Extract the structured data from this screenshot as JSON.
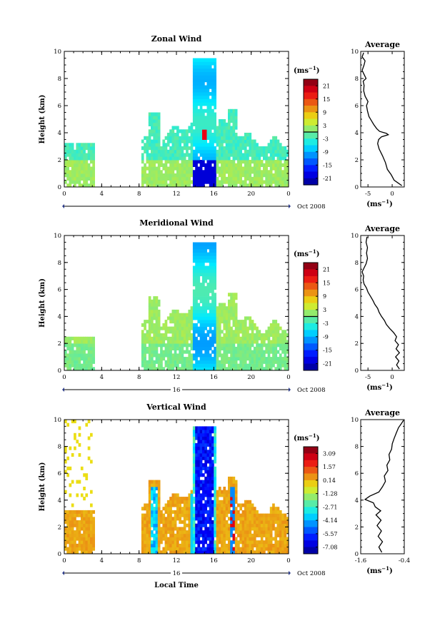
{
  "chart_data": [
    {
      "type": "heatmap",
      "title": "Zonal Wind",
      "ylabel": "Height (km)",
      "ylim": [
        0,
        10
      ],
      "xlim": [
        0,
        24
      ],
      "x_ticks": [
        "0",
        "4",
        "8",
        "12",
        "16",
        "20",
        "0"
      ],
      "y_ticks": [
        "0",
        "2",
        "4",
        "6",
        "8",
        "10"
      ],
      "date_bar_label": "",
      "date_label": "Oct 2008",
      "colorbar": {
        "unit_base": "(ms",
        "unit_exp": "−1",
        "unit_close": ")",
        "min": -24,
        "max": 24,
        "ticks": [
          "21",
          "15",
          "9",
          "3",
          "-3",
          "-9",
          "-15",
          "-21"
        ],
        "zero_line": true
      },
      "average": {
        "title": "Average",
        "xlabel_base": "(ms",
        "xlabel_exp": "−1",
        "xlabel_close": ")",
        "xlim": [
          -6.5,
          2.5
        ],
        "x_ticks": [
          {
            "value": -5,
            "label": "-5"
          },
          {
            "value": 0,
            "label": "0"
          }
        ],
        "profile": [
          [
            2.0,
            0.1
          ],
          [
            1.2,
            0.3
          ],
          [
            0.4,
            0.5
          ],
          [
            -0.2,
            0.9
          ],
          [
            -1.0,
            1.3
          ],
          [
            -1.4,
            1.8
          ],
          [
            -2.0,
            2.3
          ],
          [
            -2.7,
            2.8
          ],
          [
            -3.0,
            3.2
          ],
          [
            -2.8,
            3.5
          ],
          [
            -2.2,
            3.7
          ],
          [
            -0.8,
            3.85
          ],
          [
            -1.2,
            3.95
          ],
          [
            -2.6,
            4.1
          ],
          [
            -3.2,
            4.3
          ],
          [
            -3.8,
            4.6
          ],
          [
            -4.3,
            4.9
          ],
          [
            -4.8,
            5.2
          ],
          [
            -5.1,
            5.6
          ],
          [
            -5.3,
            6.0
          ],
          [
            -5.0,
            6.3
          ],
          [
            -5.6,
            6.7
          ],
          [
            -5.9,
            7.1
          ],
          [
            -5.8,
            7.5
          ],
          [
            -6.0,
            7.8
          ],
          [
            -5.4,
            8.0
          ],
          [
            -5.8,
            8.3
          ],
          [
            -6.2,
            8.6
          ],
          [
            -5.8,
            9.0
          ],
          [
            -5.6,
            9.3
          ],
          [
            -6.2,
            9.6
          ],
          [
            -5.9,
            9.9
          ]
        ]
      }
    },
    {
      "type": "heatmap",
      "title": "Meridional Wind",
      "ylabel": "Height (km)",
      "ylim": [
        0,
        10
      ],
      "xlim": [
        0,
        24
      ],
      "x_ticks": [
        "0",
        "4",
        "8",
        "12",
        "16",
        "20",
        "0"
      ],
      "y_ticks": [
        "0",
        "2",
        "4",
        "6",
        "8",
        "10"
      ],
      "date_bar_label": "16",
      "date_label": "Oct 2008",
      "colorbar": {
        "unit_base": "(ms",
        "unit_exp": "−1",
        "unit_close": ")",
        "min": -24,
        "max": 24,
        "ticks": [
          "21",
          "15",
          "9",
          "3",
          "-3",
          "-9",
          "-15",
          "-21"
        ],
        "zero_line": true
      },
      "average": {
        "title": "Average",
        "xlabel_base": "(ms",
        "xlabel_exp": "−1",
        "xlabel_close": ")",
        "xlim": [
          -6.5,
          2.5
        ],
        "x_ticks": [
          {
            "value": -5,
            "label": "-5"
          },
          {
            "value": 0,
            "label": "0"
          }
        ],
        "profile": [
          [
            1.5,
            0.1
          ],
          [
            0.9,
            0.4
          ],
          [
            1.4,
            0.7
          ],
          [
            0.7,
            1.0
          ],
          [
            1.5,
            1.3
          ],
          [
            0.8,
            1.6
          ],
          [
            1.3,
            1.9
          ],
          [
            0.6,
            2.2
          ],
          [
            0.9,
            2.5
          ],
          [
            0.3,
            2.8
          ],
          [
            -0.5,
            3.1
          ],
          [
            -1.2,
            3.4
          ],
          [
            -1.6,
            3.7
          ],
          [
            -2.2,
            4.0
          ],
          [
            -2.7,
            4.3
          ],
          [
            -3.0,
            4.6
          ],
          [
            -3.6,
            4.9
          ],
          [
            -4.0,
            5.2
          ],
          [
            -4.5,
            5.5
          ],
          [
            -5.0,
            5.8
          ],
          [
            -5.3,
            6.1
          ],
          [
            -5.8,
            6.4
          ],
          [
            -6.0,
            6.7
          ],
          [
            -5.9,
            7.0
          ],
          [
            -6.2,
            7.3
          ],
          [
            -5.8,
            7.6
          ],
          [
            -5.4,
            7.9
          ],
          [
            -5.1,
            8.3
          ],
          [
            -5.3,
            8.7
          ],
          [
            -5.1,
            9.1
          ],
          [
            -5.4,
            9.5
          ],
          [
            -5.2,
            9.9
          ]
        ]
      }
    },
    {
      "type": "heatmap",
      "title": "Vertical Wind",
      "ylabel": "Height (km)",
      "xlabel": "Local Time",
      "ylim": [
        0,
        10
      ],
      "xlim": [
        0,
        24
      ],
      "x_ticks": [
        "0",
        "4",
        "8",
        "12",
        "16",
        "20",
        "0"
      ],
      "y_ticks": [
        "0",
        "2",
        "4",
        "6",
        "8",
        "10"
      ],
      "date_bar_label": "16",
      "date_label": "Oct 2008",
      "colorbar": {
        "unit_base": "(ms",
        "unit_exp": "−1",
        "unit_close": ")",
        "min": -8.5,
        "max": 4.5,
        "ticks": [
          "3.09",
          "1.57",
          "0.14",
          "-1.28",
          "-2.71",
          "-4.14",
          "-5.57",
          "-7.08"
        ],
        "zero_line": false
      },
      "average": {
        "title": "Average",
        "xlabel_base": "(ms",
        "xlabel_exp": "−1",
        "xlabel_close": ")",
        "xlim": [
          -1.6,
          -0.4
        ],
        "x_ticks": [
          {
            "value": -1.6,
            "label": "-1.6"
          },
          {
            "value": -0.4,
            "label": "-0.4"
          }
        ],
        "profile": [
          [
            -1.02,
            0.1
          ],
          [
            -1.1,
            0.5
          ],
          [
            -1.0,
            0.9
          ],
          [
            -1.12,
            1.3
          ],
          [
            -1.03,
            1.7
          ],
          [
            -1.15,
            2.1
          ],
          [
            -1.04,
            2.5
          ],
          [
            -1.18,
            2.9
          ],
          [
            -1.05,
            3.2
          ],
          [
            -1.2,
            3.5
          ],
          [
            -1.25,
            3.8
          ],
          [
            -1.48,
            4.05
          ],
          [
            -1.35,
            4.3
          ],
          [
            -1.1,
            4.6
          ],
          [
            -1.0,
            5.0
          ],
          [
            -0.92,
            5.4
          ],
          [
            -0.95,
            5.8
          ],
          [
            -0.85,
            6.2
          ],
          [
            -0.88,
            6.6
          ],
          [
            -0.8,
            7.0
          ],
          [
            -0.82,
            7.4
          ],
          [
            -0.75,
            7.8
          ],
          [
            -0.73,
            8.2
          ],
          [
            -0.68,
            8.6
          ],
          [
            -0.62,
            9.0
          ],
          [
            -0.56,
            9.4
          ],
          [
            -0.48,
            9.7
          ],
          [
            -0.42,
            9.95
          ]
        ]
      }
    }
  ]
}
